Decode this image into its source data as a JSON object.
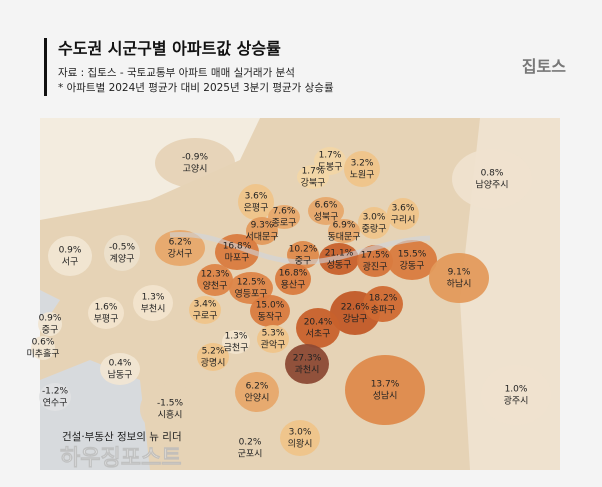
{
  "header": {
    "title": "수도권 시군구별 아파트값 상승률",
    "source": "자료 : 집토스 - 국토교통부 아파트 매매 실거래가 분석",
    "note": "* 아파트별 2024년 평균가 대비 2025년 3분기 평균가 상승률"
  },
  "logo": "집토스",
  "regions": [
    {
      "name": "고양시",
      "change": "-0.9%"
    },
    {
      "name": "도봉구",
      "change": "1.7%"
    },
    {
      "name": "노원구",
      "change": "3.2%"
    },
    {
      "name": "강북구",
      "change": "1.7%"
    },
    {
      "name": "남양주시",
      "change": "0.8%"
    },
    {
      "name": "은평구",
      "change": "3.6%"
    },
    {
      "name": "종로구",
      "change": "7.6%"
    },
    {
      "name": "서대문구",
      "change": "9.3%"
    },
    {
      "name": "성북구",
      "change": "6.6%"
    },
    {
      "name": "중랑구",
      "change": "3.0%"
    },
    {
      "name": "구리시",
      "change": "3.6%"
    },
    {
      "name": "동대문구",
      "change": "6.9%"
    },
    {
      "name": "강서구",
      "change": "6.2%"
    },
    {
      "name": "마포구",
      "change": "16.8%"
    },
    {
      "name": "중구",
      "change": "10.2%"
    },
    {
      "name": "성동구",
      "change": "21.1%"
    },
    {
      "name": "광진구",
      "change": "17.5%"
    },
    {
      "name": "강동구",
      "change": "15.5%"
    },
    {
      "name": "서구",
      "change": "0.9%"
    },
    {
      "name": "계양구",
      "change": "-0.5%"
    },
    {
      "name": "양천구",
      "change": "12.3%"
    },
    {
      "name": "영등포구",
      "change": "12.5%"
    },
    {
      "name": "용산구",
      "change": "16.8%"
    },
    {
      "name": "하남시",
      "change": "9.1%"
    },
    {
      "name": "부평구",
      "change": "1.6%"
    },
    {
      "name": "부천시",
      "change": "1.3%"
    },
    {
      "name": "구로구",
      "change": "3.4%"
    },
    {
      "name": "동작구",
      "change": "15.0%"
    },
    {
      "name": "강남구",
      "change": "22.6%"
    },
    {
      "name": "송파구",
      "change": "18.2%"
    },
    {
      "name": "서초구",
      "change": "20.4%"
    },
    {
      "name": "중구",
      "change": "0.9%"
    },
    {
      "name": "미추홀구",
      "change": "0.6%"
    },
    {
      "name": "금천구",
      "change": "1.3%"
    },
    {
      "name": "관악구",
      "change": "5.3%"
    },
    {
      "name": "광명시",
      "change": "5.2%"
    },
    {
      "name": "남동구",
      "change": "0.4%"
    },
    {
      "name": "과천시",
      "change": "27.3%"
    },
    {
      "name": "연수구",
      "change": "-1.2%"
    },
    {
      "name": "안양시",
      "change": "6.2%"
    },
    {
      "name": "성남시",
      "change": "13.7%"
    },
    {
      "name": "광주시",
      "change": "1.0%"
    },
    {
      "name": "시흥시",
      "change": "-1.5%"
    },
    {
      "name": "의왕시",
      "change": "3.0%"
    },
    {
      "name": "군포시",
      "change": "0.2%"
    }
  ],
  "footer": "건설·부동산 정보의 뉴 리더",
  "watermark": "하우징포스트"
}
